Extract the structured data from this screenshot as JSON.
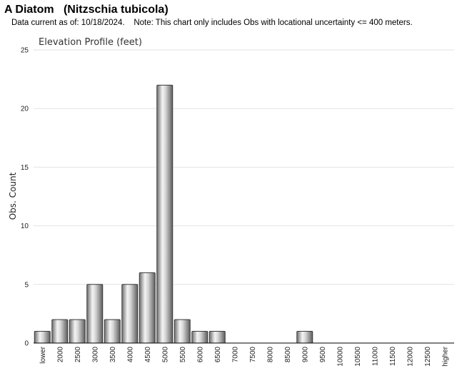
{
  "header": {
    "title": "A Diatom   (Nitzschia tubicola)",
    "subtitle": "Data current as of: 10/18/2024.    Note: This chart only includes Obs with locational uncertainty <= 400 meters."
  },
  "chart_data": {
    "type": "bar",
    "title": "Elevation Profile (feet)",
    "xlabel": "",
    "ylabel": "Obs. Count",
    "ylim": [
      0,
      25
    ],
    "yticks": [
      0,
      5,
      10,
      15,
      20,
      25
    ],
    "grid": true,
    "categories": [
      "lower",
      "2000",
      "2500",
      "3000",
      "3500",
      "4000",
      "4500",
      "5000",
      "5500",
      "6000",
      "6500",
      "7000",
      "7500",
      "8000",
      "8500",
      "9000",
      "9500",
      "10000",
      "10500",
      "11000",
      "11500",
      "12000",
      "12500",
      "higher"
    ],
    "values": [
      1,
      2,
      2,
      5,
      2,
      5,
      6,
      22,
      2,
      1,
      1,
      0,
      0,
      0,
      0,
      1,
      0,
      0,
      0,
      0,
      0,
      0,
      0,
      0
    ],
    "bar_color": "#b0b0b0"
  }
}
